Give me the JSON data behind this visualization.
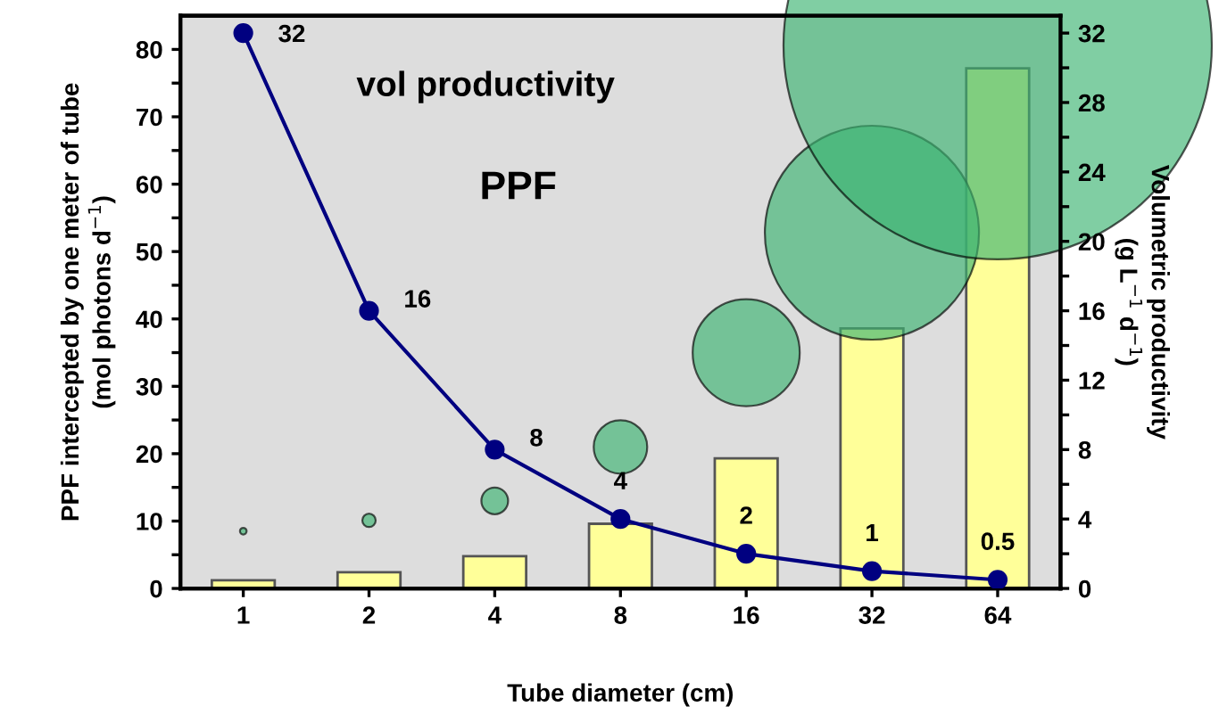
{
  "chart_data": {
    "type": "bar",
    "categories": [
      "1",
      "2",
      "4",
      "8",
      "16",
      "32",
      "64"
    ],
    "xlabel": "Tube diameter (cm)",
    "ylabel": "PPF intercepted by one meter of tube\n(mol photons d$^{−1}$)",
    "y2label": "Volumetric productivity\n(g L$^{−1}$ d$^{−1}$)",
    "annotations": [
      "vol productivity",
      "PPF"
    ],
    "ylim": [
      0,
      85
    ],
    "yticks": [
      0,
      {
        "value": 5,
        "label": null
      },
      10,
      {
        "value": 15,
        "label": null
      },
      20,
      {
        "value": 25,
        "label": null
      },
      30,
      {
        "value": 35,
        "label": null
      },
      40,
      {
        "value": 45,
        "label": null
      },
      50,
      {
        "value": 55,
        "label": null
      },
      60,
      {
        "value": 65,
        "label": null
      },
      70,
      {
        "value": 75,
        "label": null
      },
      80
    ],
    "y2lim": [
      0,
      33
    ],
    "y2ticks": [
      0,
      {
        "value": 2,
        "label": null
      },
      4,
      {
        "value": 6,
        "label": null
      },
      8,
      {
        "value": 10,
        "label": null
      },
      12,
      {
        "value": 14,
        "label": null
      },
      16,
      {
        "value": 18,
        "label": null
      },
      20,
      {
        "value": 22,
        "label": null
      },
      24,
      {
        "value": 26,
        "label": null
      },
      28,
      {
        "value": 30,
        "label": null
      },
      32
    ],
    "grid": false,
    "series": [
      {
        "color": "#ffff99",
        "values": [
          1.2,
          2.4,
          4.8,
          9.6,
          19.3,
          38.6,
          77.2
        ]
      },
      {
        "type": "bubble",
        "color": "#3cb371",
        "values": [
          8.5,
          10.1,
          13.0,
          21.0,
          35.0,
          52.8,
          80.6
        ],
        "sizes": [
          0.000244,
          0.000977,
          0.0039,
          0.0156,
          0.0625,
          0.25,
          1
        ]
      },
      {
        "type": "line",
        "axis": "y2",
        "color": "#000080",
        "marker": "circle",
        "data_labels": true,
        "values": [
          32,
          16,
          8,
          4,
          2,
          1,
          0.5
        ]
      }
    ]
  }
}
